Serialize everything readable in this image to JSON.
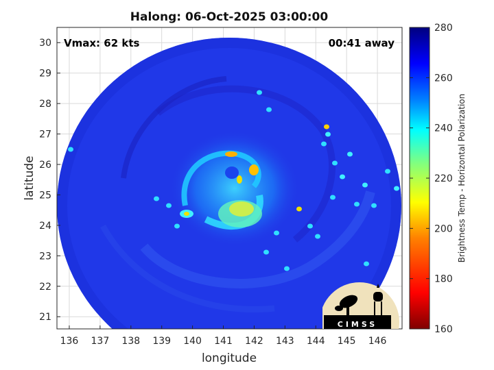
{
  "title": "Halong: 06-Oct-2025 03:00:00",
  "vmax_label": "Vmax: 62 kts",
  "time_offset_label": "00:41 away",
  "map": {
    "xlabel": "longitude",
    "ylabel": "latitude",
    "xlim": [
      135.6,
      146.8
    ],
    "ylim": [
      20.6,
      30.5
    ],
    "x_ticks": [
      "136",
      "137",
      "138",
      "139",
      "140",
      "141",
      "142",
      "143",
      "144",
      "145",
      "146"
    ],
    "y_ticks": [
      "21",
      "22",
      "23",
      "24",
      "25",
      "26",
      "27",
      "28",
      "29",
      "30"
    ],
    "grid": true,
    "swath_center": [
      141.2,
      25.5
    ],
    "swath_radius_deg": 5.5,
    "storm_center": [
      141.35,
      25.75
    ]
  },
  "colorbar": {
    "label": "Brightness Temp - Horizontal Polarization",
    "range": [
      160,
      280
    ],
    "ticks": [
      "280",
      "260",
      "240",
      "220",
      "200",
      "180",
      "160"
    ]
  },
  "logo": {
    "text": "CIMSS"
  },
  "colors": {
    "background_swath": "#2038e8",
    "outside": "#ffffff",
    "grid": "#d9d9d9"
  }
}
